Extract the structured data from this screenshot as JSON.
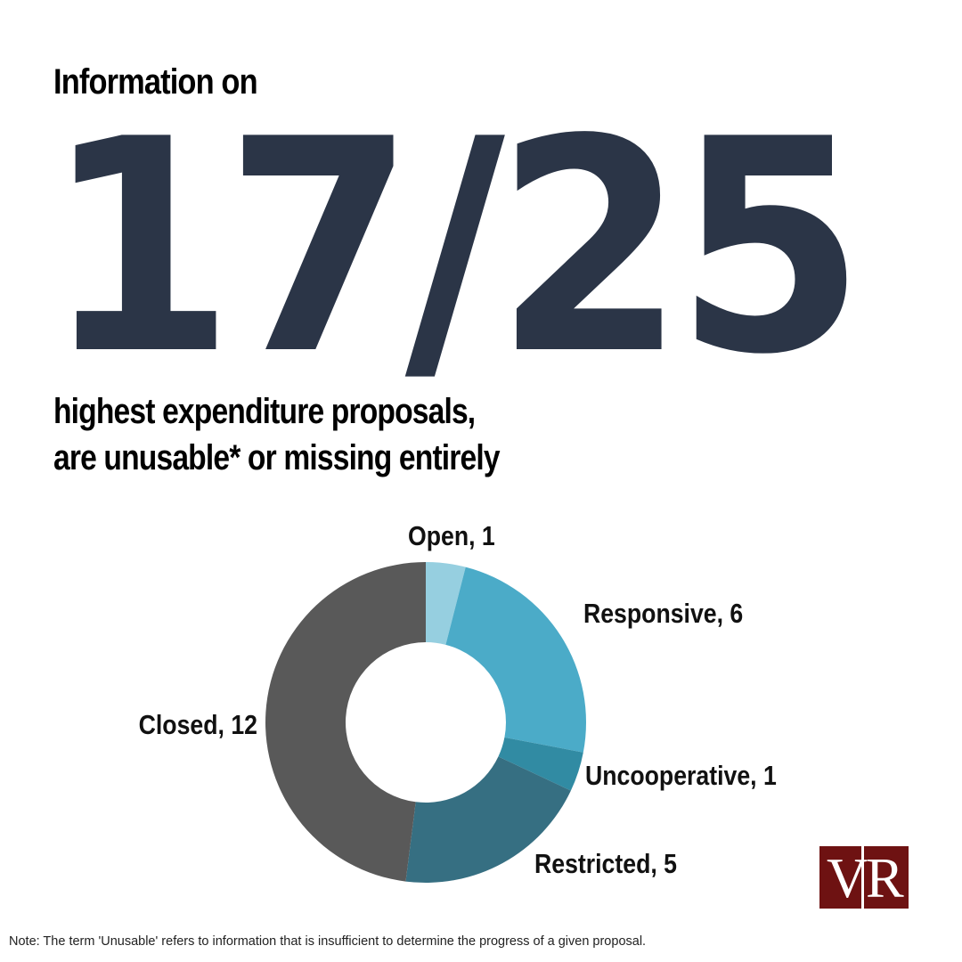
{
  "header": {
    "intro": "Information on",
    "big_number": "17/25",
    "subtitle_line1": "highest expenditure proposals,",
    "subtitle_line2": "are unusable* or missing entirely"
  },
  "chart_data": {
    "type": "pie",
    "style": "donut",
    "total": 25,
    "slices": [
      {
        "name": "Open",
        "value": 1,
        "label": "Open, 1",
        "color": "#96cfe0"
      },
      {
        "name": "Responsive",
        "value": 6,
        "label": "Responsive, 6",
        "color": "#4babc8"
      },
      {
        "name": "Uncooperative",
        "value": 1,
        "label": "Uncooperative, 1",
        "color": "#318ba3"
      },
      {
        "name": "Restricted",
        "value": 5,
        "label": "Restricted, 5",
        "color": "#366f82"
      },
      {
        "name": "Closed",
        "value": 12,
        "label": "Closed, 12",
        "color": "#595959"
      }
    ]
  },
  "logo": {
    "letter1": "V",
    "letter2": "R",
    "color": "#6e1212"
  },
  "footer": {
    "note": "Note: The term 'Unusable' refers to information that is insufficient to determine the progress of a given proposal."
  }
}
